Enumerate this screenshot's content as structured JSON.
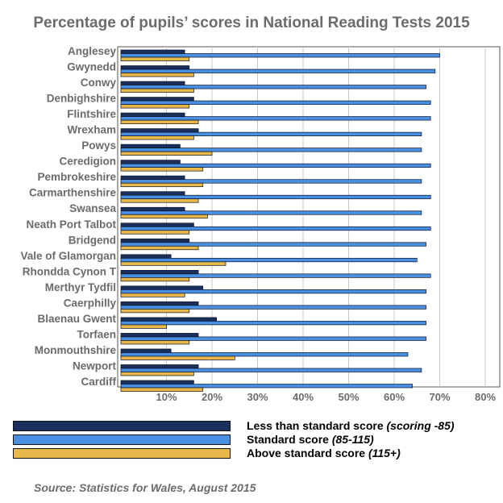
{
  "chart_data": {
    "type": "bar",
    "orientation": "horizontal",
    "title": "Percentage of pupils’ scores in National Reading Tests 2015",
    "categories": [
      "Anglesey",
      "Gwynedd",
      "Conwy",
      "Denbighshire",
      "Flintshire",
      "Wrexham",
      "Powys",
      "Ceredigion",
      "Pembrokeshire",
      "Carmarthenshire",
      "Swansea",
      "Neath Port Talbot",
      "Bridgend",
      "Vale of Glamorgan",
      "Rhondda Cynon T",
      "Merthyr Tydfil",
      "Caerphilly",
      "Blaenau Gwent",
      "Torfaen",
      "Monmouthshire",
      "Newport",
      "Cardiff"
    ],
    "series": [
      {
        "name": "Less than standard score",
        "qualifier": "(scoring -85)",
        "color": "#1a2f5c",
        "values": [
          14,
          15,
          14,
          16,
          14,
          17,
          13,
          13,
          14,
          14,
          14,
          16,
          15,
          11,
          17,
          18,
          17,
          21,
          17,
          11,
          17,
          16
        ]
      },
      {
        "name": "Standard score",
        "qualifier": "(85-115)",
        "color": "#4a90e2",
        "values": [
          70,
          69,
          67,
          68,
          68,
          66,
          66,
          68,
          66,
          68,
          66,
          68,
          67,
          65,
          68,
          67,
          67,
          67,
          67,
          63,
          66,
          64
        ]
      },
      {
        "name": "Above standard score",
        "qualifier": "(115+)",
        "color": "#e8b84a",
        "values": [
          15,
          16,
          16,
          15,
          17,
          16,
          20,
          18,
          18,
          17,
          19,
          15,
          17,
          23,
          15,
          14,
          15,
          10,
          15,
          25,
          16,
          18
        ]
      }
    ],
    "x_ticks": [
      "10%",
      "20%",
      "30%",
      "40%",
      "50%",
      "60%",
      "70%",
      "80%"
    ],
    "xlim": [
      0,
      80
    ],
    "grid": true,
    "legend_position": "bottom"
  },
  "source": "Source: Statistics for Wales, August 2015"
}
